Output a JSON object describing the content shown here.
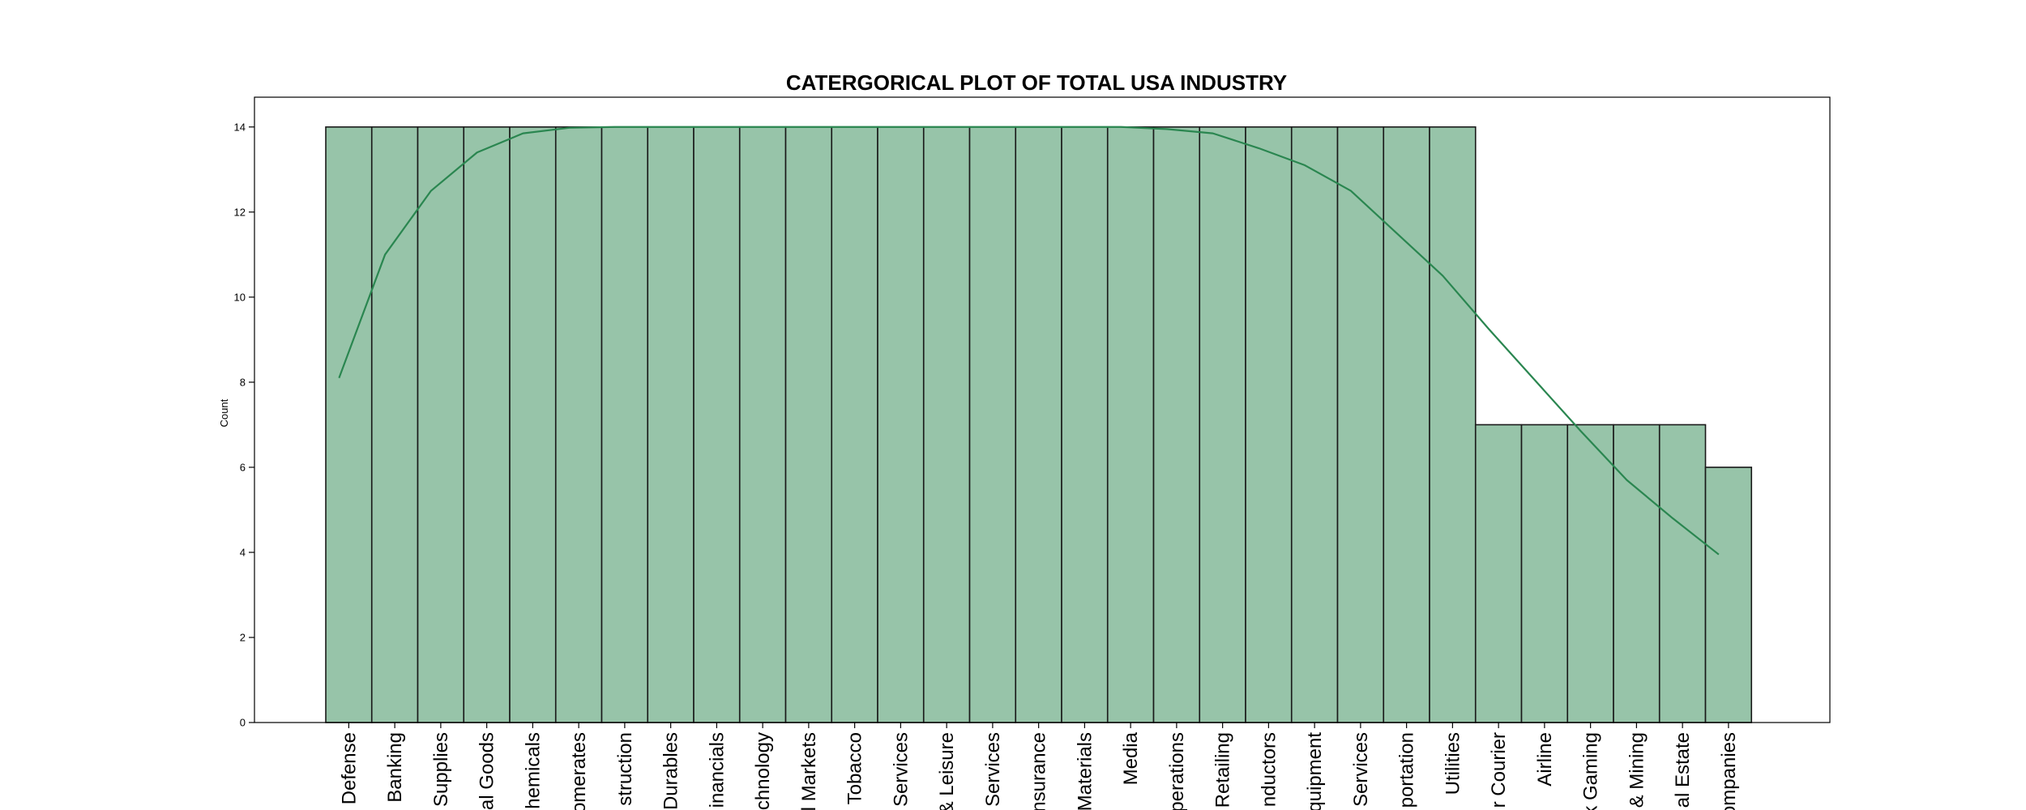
{
  "chart_data": {
    "type": "bar",
    "title": "CATERGORICAL PLOT OF TOTAL USA INDUSTRY",
    "xlabel": "",
    "ylabel": "Count",
    "ylim": [
      0,
      14.7
    ],
    "yticks": [
      0,
      2,
      4,
      6,
      8,
      10,
      12,
      14
    ],
    "categories": [
      "Defense",
      "Banking",
      "Supplies",
      "al Goods",
      "hemicals",
      "omerates",
      "struction",
      "Durables",
      "inancials",
      "chnology",
      "l Markets",
      "Tobacco",
      "Services",
      "& Leisure",
      "Services",
      "nsurance",
      "Materials",
      "Media",
      "perations",
      "Retailing",
      "nductors",
      "quipment",
      "Services",
      "portation",
      "Utilities",
      "r Courier",
      "Airline",
      "k Gaming",
      "& Mining",
      "al Estate",
      "ompanies"
    ],
    "values": [
      14,
      14,
      14,
      14,
      14,
      14,
      14,
      14,
      14,
      14,
      14,
      14,
      14,
      14,
      14,
      14,
      14,
      14,
      14,
      14,
      14,
      14,
      14,
      14,
      14,
      7,
      7,
      7,
      7,
      7,
      6
    ],
    "kde": {
      "x_start": "Defense",
      "x_end": "ompanies",
      "values": [
        8.1,
        11.0,
        12.5,
        13.4,
        13.85,
        13.98,
        14.0,
        14.0,
        14.0,
        14.0,
        14.0,
        14.0,
        14.0,
        14.0,
        14.0,
        14.0,
        14.0,
        14.0,
        13.95,
        13.85,
        13.5,
        13.1,
        12.5,
        11.5,
        10.5,
        9.25,
        8.05,
        6.85,
        5.7,
        4.8,
        3.95
      ]
    },
    "bar_color": "#97c4a9",
    "bar_edge_color": "#1a1a1a",
    "line_color": "#2a8650",
    "grid": false,
    "legend": "none"
  }
}
